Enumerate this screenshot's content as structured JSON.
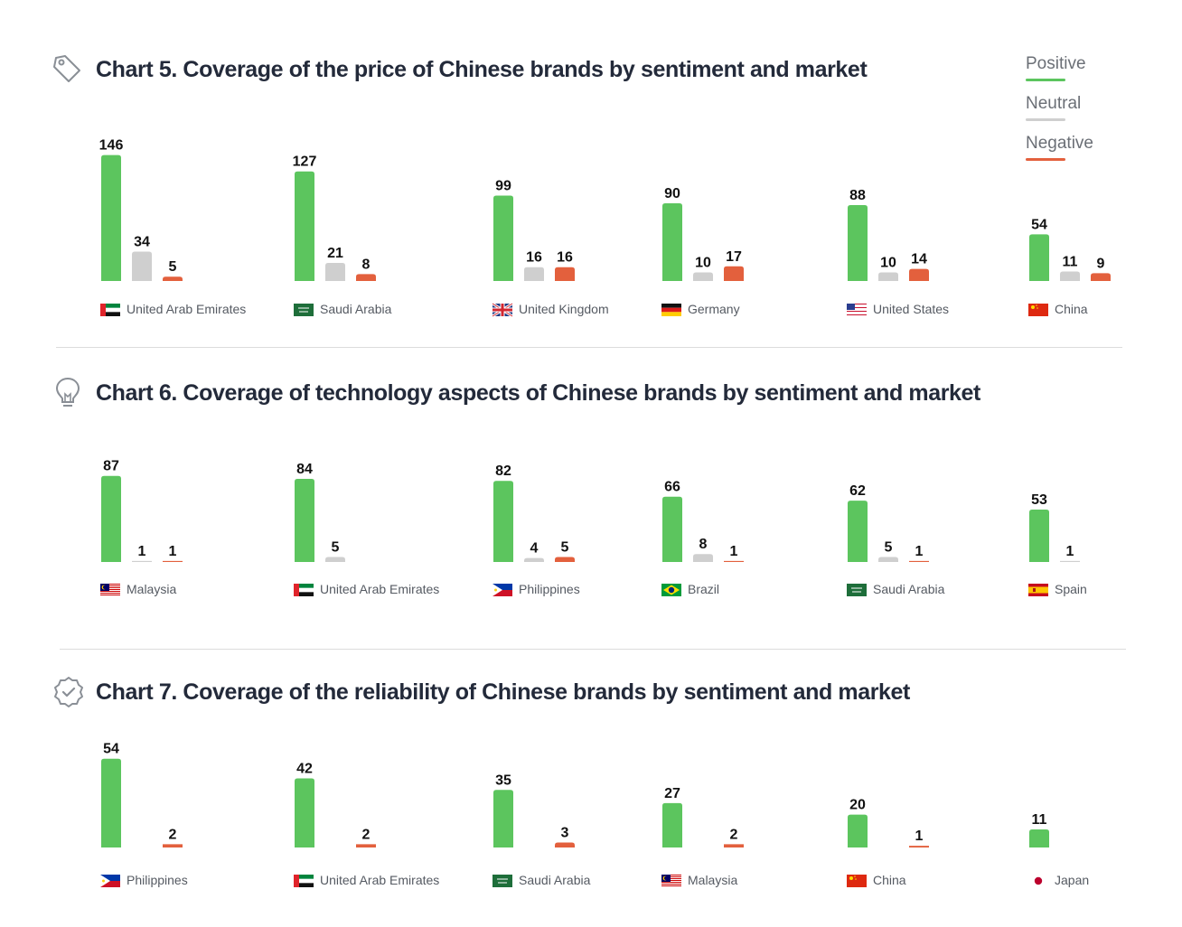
{
  "legend": [
    {
      "label": "Positive",
      "color": "#5cc55e"
    },
    {
      "label": "Neutral",
      "color": "#cfcfcf"
    },
    {
      "label": "Negative",
      "color": "#e3603d"
    }
  ],
  "colors": {
    "positive": "#5cc55e",
    "neutral": "#cfcfcf",
    "negative": "#e3603d"
  },
  "chart_data": [
    {
      "type": "bar",
      "title": "Chart 5. Coverage of the price of Chinese brands by sentiment and market",
      "icon": "price-tag-icon",
      "categories": [
        "United Arab Emirates",
        "Saudi Arabia",
        "United Kingdom",
        "Germany",
        "United States",
        "China"
      ],
      "flags": [
        "uae-flag-icon",
        "saudi-flag-icon",
        "uk-flag-icon",
        "germany-flag-icon",
        "usa-flag-icon",
        "china-flag-icon"
      ],
      "series": [
        {
          "name": "Positive",
          "values": [
            146,
            127,
            99,
            90,
            88,
            54
          ]
        },
        {
          "name": "Neutral",
          "values": [
            34,
            21,
            16,
            10,
            10,
            11
          ]
        },
        {
          "name": "Negative",
          "values": [
            5,
            8,
            16,
            17,
            14,
            9
          ]
        }
      ]
    },
    {
      "type": "bar",
      "title": "Chart 6. Coverage of technology aspects of Chinese brands by sentiment and market",
      "icon": "lightbulb-icon",
      "categories": [
        "Malaysia",
        "United Arab Emirates",
        "Philippines",
        "Brazil",
        "Saudi Arabia",
        "Spain"
      ],
      "flags": [
        "malaysia-flag-icon",
        "uae-flag-icon",
        "philippines-flag-icon",
        "brazil-flag-icon",
        "saudi-flag-icon",
        "spain-flag-icon"
      ],
      "series": [
        {
          "name": "Positive",
          "values": [
            87,
            84,
            82,
            66,
            62,
            53
          ]
        },
        {
          "name": "Neutral",
          "values": [
            1,
            5,
            4,
            8,
            5,
            1
          ]
        },
        {
          "name": "Negative",
          "values": [
            1,
            null,
            5,
            1,
            1,
            null
          ]
        }
      ]
    },
    {
      "type": "bar",
      "title": "Chart 7.  Coverage of the reliability of Chinese brands by sentiment and market",
      "icon": "award-badge-icon",
      "categories": [
        "Philippines",
        "United Arab Emirates",
        "Saudi Arabia",
        "Malaysia",
        "China",
        "Japan"
      ],
      "flags": [
        "philippines-flag-icon",
        "uae-flag-icon",
        "saudi-flag-icon",
        "malaysia-flag-icon",
        "china-flag-icon",
        "japan-flag-icon"
      ],
      "series": [
        {
          "name": "Positive",
          "values": [
            54,
            42,
            35,
            27,
            20,
            11
          ]
        },
        {
          "name": "Neutral",
          "values": [
            null,
            null,
            null,
            null,
            null,
            null
          ]
        },
        {
          "name": "Negative",
          "values": [
            2,
            2,
            3,
            2,
            1,
            null
          ]
        }
      ]
    }
  ]
}
